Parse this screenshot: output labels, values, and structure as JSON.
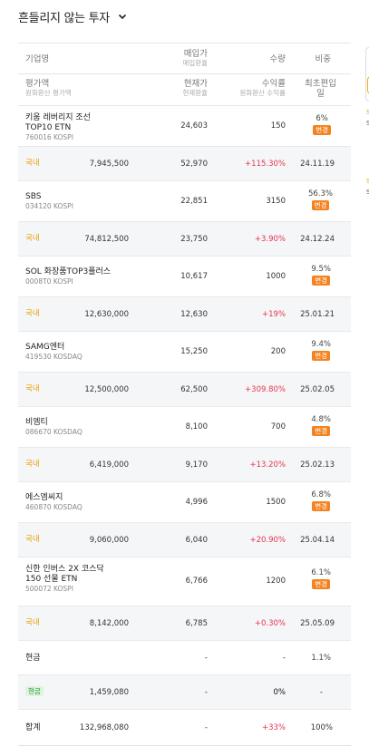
{
  "header": {
    "title": "흔들리지 않는 투자"
  },
  "columns": {
    "row1": {
      "name": "기업명",
      "buy": "매입가",
      "buy_sub": "매입환율",
      "qty": "수량",
      "ratio": "비중"
    },
    "row2": {
      "value": "평가액",
      "value_sub": "원화환산 평가액",
      "cur": "현재가",
      "cur_sub": "현재환율",
      "ret": "수익률",
      "ret_sub": "원화환산 수익률",
      "first": "최초편입",
      "first2": "일"
    }
  },
  "holdings": [
    {
      "name1": "키움 레버리지 조선",
      "name2": "TOP10 ETN",
      "code": "760016 KOSPI",
      "buy": "24,603",
      "qty": "150",
      "ratio": "6%",
      "badge": "변경",
      "market": "국내",
      "value": "7,945,500",
      "cur": "52,970",
      "ret": "+115.30%",
      "date": "24.11.19"
    },
    {
      "name1": "SBS",
      "name2": "",
      "code": "034120 KOSPI",
      "buy": "22,851",
      "qty": "3150",
      "ratio": "56.3%",
      "badge": "변경",
      "market": "국내",
      "value": "74,812,500",
      "cur": "23,750",
      "ret": "+3.90%",
      "date": "24.12.24"
    },
    {
      "name1": "SOL 화장품TOP3플러스",
      "name2": "",
      "code": "0008T0 KOSPI",
      "buy": "10,617",
      "qty": "1000",
      "ratio": "9.5%",
      "badge": "변경",
      "market": "국내",
      "value": "12,630,000",
      "cur": "12,630",
      "ret": "+19%",
      "date": "25.01.21"
    },
    {
      "name1": "SAMG엔터",
      "name2": "",
      "code": "419530 KOSDAQ",
      "buy": "15,250",
      "qty": "200",
      "ratio": "9.4%",
      "badge": "변경",
      "market": "국내",
      "value": "12,500,000",
      "cur": "62,500",
      "ret": "+309.80%",
      "date": "25.02.05"
    },
    {
      "name1": "비엠티",
      "name2": "",
      "code": "086670 KOSDAQ",
      "buy": "8,100",
      "qty": "700",
      "ratio": "4.8%",
      "badge": "변경",
      "market": "국내",
      "value": "6,419,000",
      "cur": "9,170",
      "ret": "+13.20%",
      "date": "25.02.13"
    },
    {
      "name1": "에스엠씨지",
      "name2": "",
      "code": "460870 KOSDAQ",
      "buy": "4,996",
      "qty": "1500",
      "ratio": "6.8%",
      "badge": "변경",
      "market": "국내",
      "value": "9,060,000",
      "cur": "6,040",
      "ret": "+20.90%",
      "date": "25.04.14"
    },
    {
      "name1": "신한 인버스 2X 코스닥",
      "name2": "150 선물 ETN",
      "code": "500072 KOSPI",
      "buy": "6,766",
      "qty": "1200",
      "ratio": "6.1%",
      "badge": "변경",
      "market": "국내",
      "value": "8,142,000",
      "cur": "6,785",
      "ret": "+0.30%",
      "date": "25.05.09"
    }
  ],
  "cash": {
    "label": "현금",
    "buy": "-",
    "qty": "-",
    "ratio": "1.1%",
    "tag": "현금",
    "value": "1,459,080",
    "cur": "-",
    "ret": "0%",
    "date": "-"
  },
  "total": {
    "label": "합계",
    "value": "132,968,080",
    "cur": "-",
    "ret": "+33%",
    "ratio": "100%"
  },
  "side": {
    "m1": "S",
    "m2": "S",
    "m3": "S",
    "m4": "S"
  }
}
